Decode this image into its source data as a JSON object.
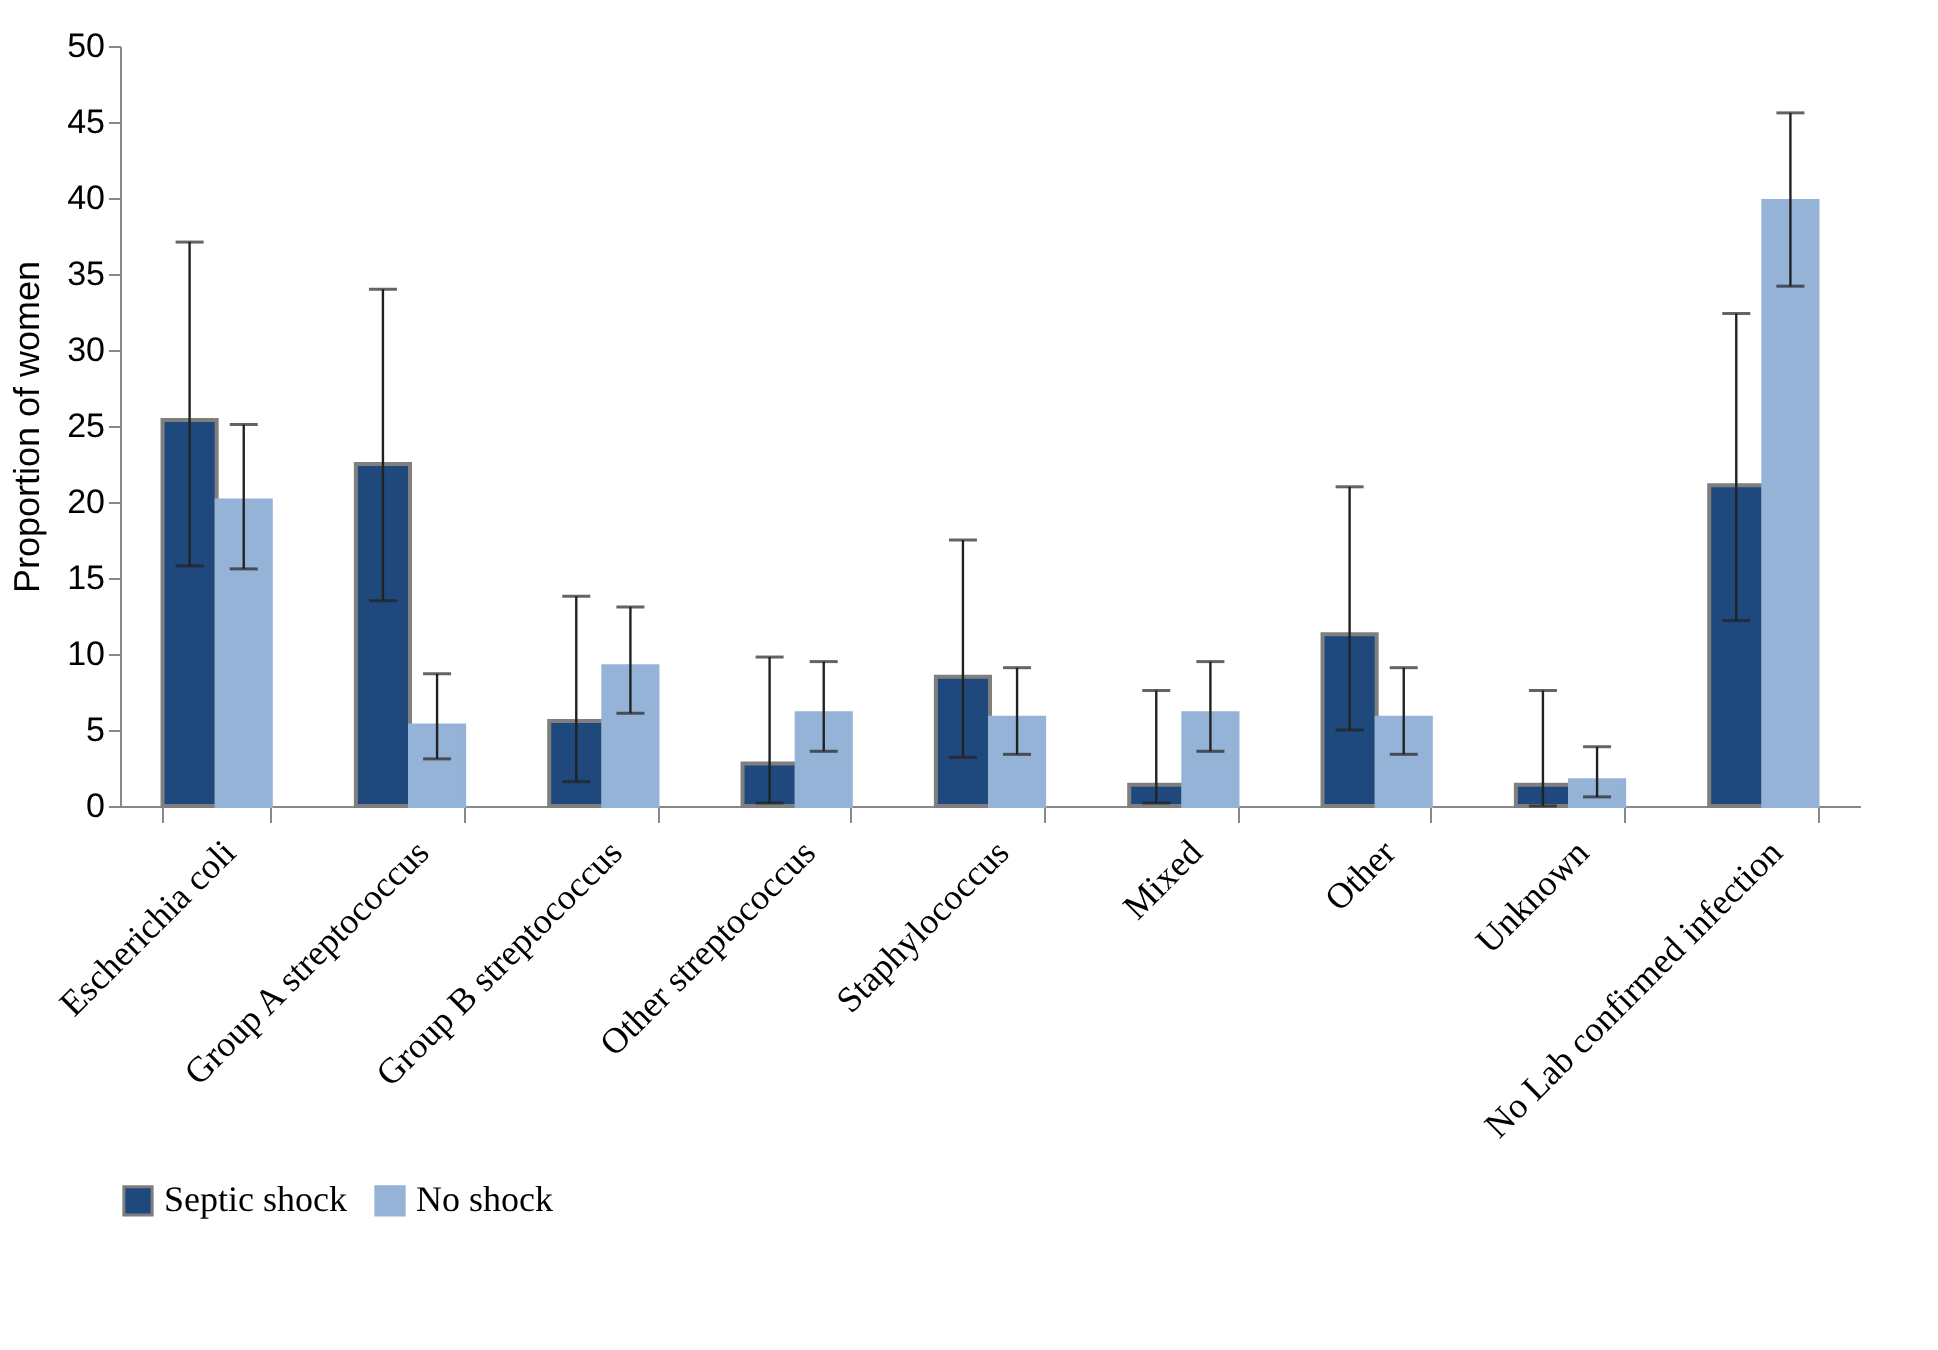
{
  "chart_data": {
    "type": "bar",
    "ylabel": "Proportion of women",
    "categories": [
      "Escherichia coli",
      "Group A streptococcus",
      "Group B streptococcus",
      "Other streptococcus",
      "Staphylococcus",
      "Mixed",
      "Other",
      "Unknown",
      "No Lab confirmed infection"
    ],
    "series": [
      {
        "name": "Septic shock",
        "color": "#1f497d",
        "values": [
          25.4,
          22.5,
          5.6,
          2.8,
          8.5,
          1.4,
          11.3,
          1.4,
          21.1
        ],
        "errors": [
          [
            15.8,
            37.1
          ],
          [
            13.5,
            34.0
          ],
          [
            1.6,
            13.8
          ],
          [
            0.2,
            9.8
          ],
          [
            3.2,
            17.5
          ],
          [
            0.2,
            7.6
          ],
          [
            5.0,
            21.0
          ],
          [
            0.0,
            7.6
          ],
          [
            12.2,
            32.4
          ]
        ]
      },
      {
        "name": "No shock",
        "color": "#95b3d7",
        "values": [
          20.1,
          5.3,
          9.2,
          6.1,
          5.8,
          6.1,
          5.8,
          1.7,
          39.8
        ],
        "errors": [
          [
            15.6,
            25.1
          ],
          [
            3.1,
            8.7
          ],
          [
            6.1,
            13.1
          ],
          [
            3.6,
            9.5
          ],
          [
            3.4,
            9.1
          ],
          [
            3.6,
            9.5
          ],
          [
            3.4,
            9.1
          ],
          [
            0.6,
            3.9
          ],
          [
            34.2,
            45.6
          ]
        ]
      }
    ],
    "ylim": [
      0,
      50
    ],
    "yticks": [
      0,
      5,
      10,
      15,
      20,
      25,
      30,
      35,
      40,
      45,
      50
    ],
    "grid": false,
    "legend": "bottom"
  }
}
